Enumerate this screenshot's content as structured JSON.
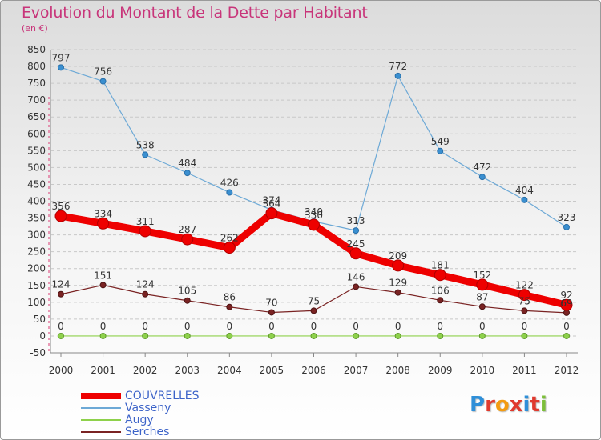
{
  "header": {
    "title": "Evolution du Montant de la Dette par Habitant",
    "subtitle": "(en €)"
  },
  "logo": {
    "text": "Proxiti",
    "colors": [
      "#2f8fd8",
      "#e03a2e",
      "#f39c12",
      "#e03a2e",
      "#2f8fd8",
      "#e03a2e",
      "#7cbf3a"
    ]
  },
  "chart_data": {
    "type": "line",
    "x": [
      "2000",
      "2001",
      "2002",
      "2003",
      "2004",
      "2005",
      "2006",
      "2007",
      "2008",
      "2009",
      "2010",
      "2011",
      "2012"
    ],
    "ylim": [
      -50,
      850
    ],
    "yticks": [
      -50,
      0,
      50,
      100,
      150,
      200,
      250,
      300,
      350,
      400,
      450,
      500,
      550,
      600,
      650,
      700,
      750,
      800,
      850
    ],
    "grid": "horizontal dashed",
    "legend_position": "bottom-left",
    "series": [
      {
        "name": "COUVRELLES",
        "color": "#ee0000",
        "values": [
          356,
          334,
          311,
          287,
          262,
          364,
          330,
          245,
          209,
          181,
          152,
          122,
          92
        ],
        "labels": [
          "356",
          "334",
          "311",
          "287",
          "262",
          "364",
          "330",
          "245",
          "209",
          "181",
          "152",
          "122",
          "92"
        ]
      },
      {
        "name": "Vasseny",
        "color": "#6da9d6",
        "values": [
          797,
          756,
          538,
          484,
          426,
          374,
          340,
          313,
          772,
          549,
          472,
          404,
          323
        ],
        "labels": [
          "797",
          "756",
          "538",
          "484",
          "426",
          "374",
          "340",
          "313",
          "772",
          "549",
          "472",
          "404",
          "323"
        ]
      },
      {
        "name": "Augy",
        "color": "#8ed14b",
        "values": [
          0,
          0,
          0,
          0,
          0,
          0,
          0,
          0,
          0,
          0,
          0,
          0,
          0
        ],
        "labels": [
          "0",
          "0",
          "0",
          "0",
          "0",
          "0",
          "0",
          "0",
          "0",
          "0",
          "0",
          "0",
          "0"
        ]
      },
      {
        "name": "Serches",
        "color": "#7a2323",
        "values": [
          124,
          151,
          124,
          105,
          86,
          70,
          75,
          146,
          129,
          106,
          87,
          75,
          69
        ],
        "labels": [
          "124",
          "151",
          "124",
          "105",
          "86",
          "70",
          "75",
          "146",
          "129",
          "106",
          "87",
          "75",
          "69"
        ]
      }
    ]
  }
}
